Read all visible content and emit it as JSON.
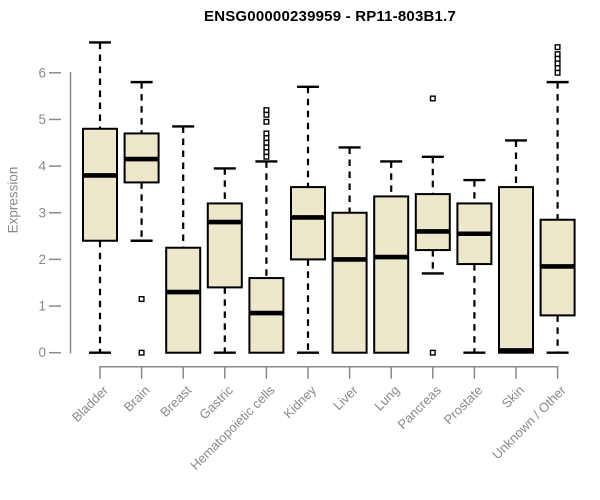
{
  "page": {
    "background": "#ffffff"
  },
  "chart_data": {
    "type": "boxplot",
    "title": "ENSG00000239959 - RP11-803B1.7",
    "ylabel": "Expression",
    "xlabel": "",
    "ylim": [
      0,
      6.8
    ],
    "yticks": [
      0,
      1,
      2,
      3,
      4,
      5,
      6
    ],
    "grid": false,
    "legend": false,
    "style": {
      "box_fill": "#EDE7CB",
      "box_stroke": "#000000",
      "median_color": "#000000",
      "whisker_color": "#000000",
      "outlier_fill": "#ffffff",
      "axis_color": "#8a8a8a",
      "label_color": "#8a8a8a",
      "title_color": "#000000"
    },
    "categories": [
      "Bladder",
      "Brain",
      "Breast",
      "Gastric",
      "Hematopoietic cells",
      "Kidney",
      "Liver",
      "Lung",
      "Pancreas",
      "Prostate",
      "Skin",
      "Unknown / Other"
    ],
    "series": [
      {
        "name": "Bladder",
        "whisker_low": 0,
        "q1": 2.4,
        "median": 3.8,
        "q3": 4.8,
        "whisker_high": 6.65,
        "outliers": []
      },
      {
        "name": "Brain",
        "whisker_low": 2.4,
        "q1": 3.65,
        "median": 4.15,
        "q3": 4.7,
        "whisker_high": 5.8,
        "outliers": [
          1.15,
          0
        ]
      },
      {
        "name": "Breast",
        "whisker_low": 0,
        "q1": 0,
        "median": 1.3,
        "q3": 2.25,
        "whisker_high": 4.85,
        "outliers": []
      },
      {
        "name": "Gastric",
        "whisker_low": 0,
        "q1": 1.4,
        "median": 2.8,
        "q3": 3.2,
        "whisker_high": 3.95,
        "outliers": []
      },
      {
        "name": "Hematopoietic cells",
        "whisker_low": 0,
        "q1": 0,
        "median": 0.85,
        "q3": 1.6,
        "whisker_high": 4.1,
        "outliers": [
          5.2,
          5.1,
          4.95,
          4.7,
          4.6,
          4.5,
          4.4,
          4.3,
          4.2
        ]
      },
      {
        "name": "Kidney",
        "whisker_low": 0,
        "q1": 2.0,
        "median": 2.9,
        "q3": 3.55,
        "whisker_high": 5.7,
        "outliers": []
      },
      {
        "name": "Liver",
        "whisker_low": 0,
        "q1": 0,
        "median": 2.0,
        "q3": 3.0,
        "whisker_high": 4.4,
        "outliers": []
      },
      {
        "name": "Lung",
        "whisker_low": 0,
        "q1": 0,
        "median": 2.05,
        "q3": 3.35,
        "whisker_high": 4.1,
        "outliers": []
      },
      {
        "name": "Pancreas",
        "whisker_low": 1.7,
        "q1": 2.2,
        "median": 2.6,
        "q3": 3.4,
        "whisker_high": 4.2,
        "outliers": [
          5.45,
          0
        ]
      },
      {
        "name": "Prostate",
        "whisker_low": 0,
        "q1": 1.9,
        "median": 2.55,
        "q3": 3.2,
        "whisker_high": 3.7,
        "outliers": []
      },
      {
        "name": "Skin",
        "whisker_low": 0,
        "q1": 0,
        "median": 0.05,
        "q3": 3.55,
        "whisker_high": 4.55,
        "outliers": []
      },
      {
        "name": "Unknown / Other",
        "whisker_low": 0,
        "q1": 0.8,
        "median": 1.85,
        "q3": 2.85,
        "whisker_high": 5.8,
        "outliers": [
          6.55,
          6.4,
          6.3,
          6.2,
          6.1,
          6.0
        ]
      }
    ]
  }
}
